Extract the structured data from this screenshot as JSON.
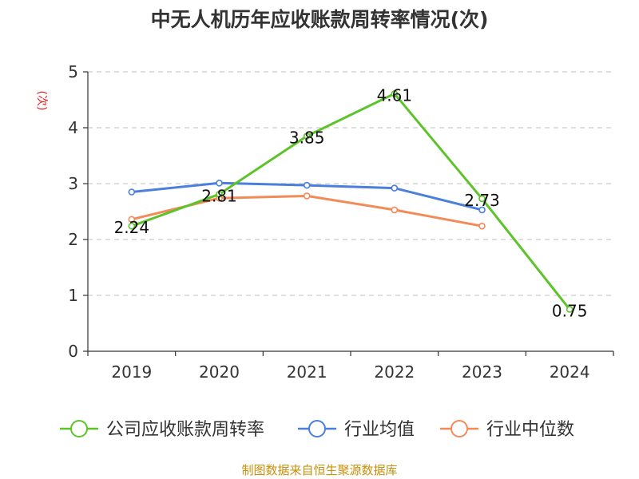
{
  "chart_data": {
    "type": "line",
    "title": "中无人机历年应收账款周转率情况(次)",
    "ylabel": "(次)",
    "xlabel": "",
    "categories": [
      "2019",
      "2020",
      "2021",
      "2022",
      "2023",
      "2024"
    ],
    "ylim": [
      0,
      5
    ],
    "yticks": [
      0,
      1,
      2,
      3,
      4,
      5
    ],
    "grid": true,
    "legend_position": "bottom",
    "series": [
      {
        "name": "公司应收账款周转率",
        "color": "#5cc42a",
        "values": [
          2.24,
          2.81,
          3.85,
          4.61,
          2.73,
          0.75
        ],
        "labels": [
          "2.24",
          "2.81",
          "3.85",
          "4.61",
          "2.73",
          "0.75"
        ]
      },
      {
        "name": "行业均值",
        "color": "#4a7fdc",
        "values": [
          2.85,
          3.01,
          2.97,
          2.92,
          2.53,
          null
        ]
      },
      {
        "name": "行业中位数",
        "color": "#f28b58",
        "values": [
          2.36,
          2.74,
          2.78,
          2.53,
          2.24,
          null
        ]
      }
    ],
    "source": "制图数据来自恒生聚源数据库"
  }
}
